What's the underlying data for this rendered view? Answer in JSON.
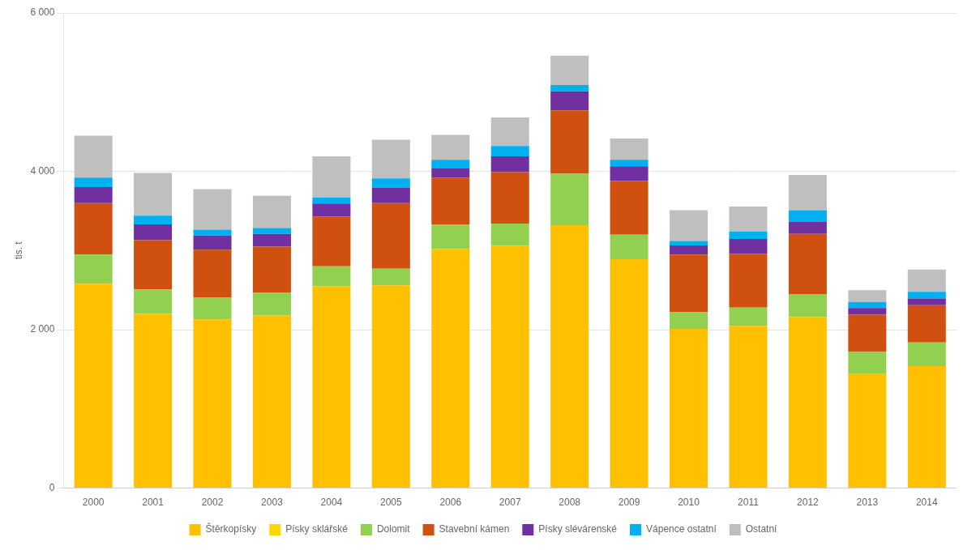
{
  "chart_data": {
    "type": "bar",
    "stacked": true,
    "ylabel": "tis. t",
    "categories": [
      "2000",
      "2001",
      "2002",
      "2003",
      "2004",
      "2005",
      "2006",
      "2007",
      "2008",
      "2009",
      "2010",
      "2011",
      "2012",
      "2013",
      "2014"
    ],
    "series": [
      {
        "name": "Štěrkopísky",
        "color": "#FFC000",
        "values": [
          2580,
          2200,
          2130,
          2180,
          2550,
          2560,
          3020,
          3060,
          3320,
          2890,
          2010,
          2050,
          2160,
          1440,
          1540
        ]
      },
      {
        "name": "Písky sklářské",
        "color": "#FFD700",
        "values": [
          0,
          0,
          0,
          0,
          0,
          0,
          0,
          0,
          0,
          0,
          0,
          0,
          0,
          0,
          0
        ]
      },
      {
        "name": "Dolomit",
        "color": "#92D050",
        "values": [
          370,
          310,
          280,
          290,
          250,
          210,
          310,
          280,
          650,
          310,
          210,
          230,
          290,
          280,
          300
        ]
      },
      {
        "name": "Stavební kámen",
        "color": "#D05010",
        "values": [
          650,
          620,
          600,
          580,
          630,
          830,
          590,
          650,
          800,
          680,
          730,
          680,
          760,
          470,
          470
        ]
      },
      {
        "name": "Písky slévárenské",
        "color": "#7030A0",
        "values": [
          200,
          200,
          180,
          160,
          165,
          195,
          115,
          200,
          240,
          185,
          115,
          185,
          155,
          85,
          85
        ]
      },
      {
        "name": "Vápence ostatní",
        "color": "#00B0F0",
        "values": [
          120,
          110,
          75,
          75,
          75,
          115,
          110,
          130,
          80,
          80,
          55,
          95,
          145,
          75,
          85
        ]
      },
      {
        "name": "Ostatní",
        "color": "#BFBFBF",
        "values": [
          530,
          540,
          510,
          405,
          520,
          490,
          315,
          360,
          370,
          270,
          390,
          315,
          445,
          150,
          280
        ]
      }
    ],
    "ylim": [
      0,
      6000
    ],
    "yticks": [
      0,
      {
        "value": 2000,
        "label": "2 000"
      },
      {
        "value": 4000,
        "label": "4 000"
      },
      {
        "value": 6000,
        "label": "6 000"
      }
    ],
    "grid": true,
    "legend": "bottom"
  }
}
